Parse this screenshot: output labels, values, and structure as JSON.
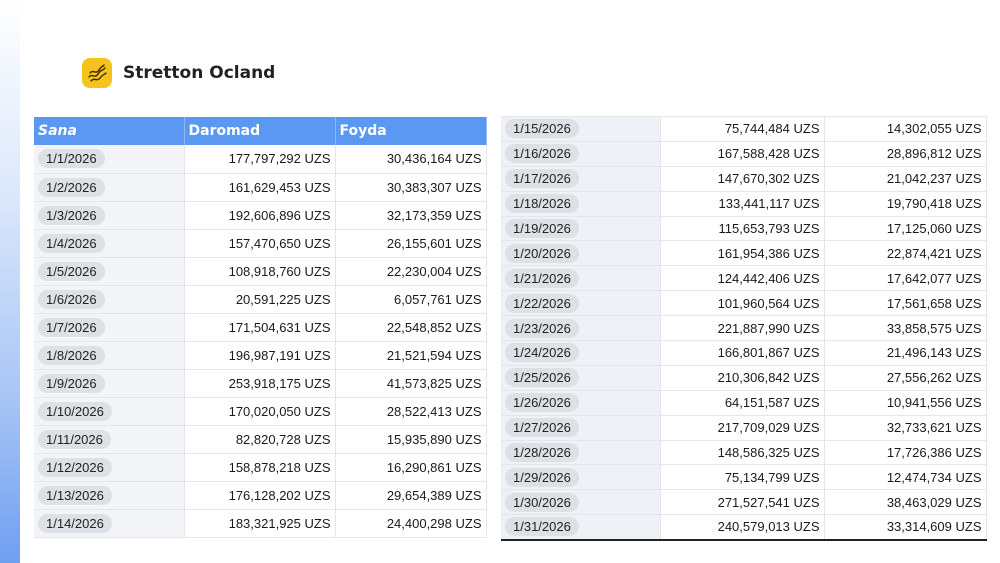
{
  "brand": {
    "name": "Stretton Ocland",
    "logo_icon": "wavy-lines-icon",
    "logo_color": "#f6c21c"
  },
  "accent_color": "#5b98f2",
  "table": {
    "headers": {
      "date": "Sana",
      "revenue": "Daromad",
      "profit": "Foyda"
    },
    "left_rows": [
      {
        "date": "1/1/2026",
        "revenue": "177,797,292 UZS",
        "profit": "30,436,164 UZS"
      },
      {
        "date": "1/2/2026",
        "revenue": "161,629,453 UZS",
        "profit": "30,383,307 UZS"
      },
      {
        "date": "1/3/2026",
        "revenue": "192,606,896 UZS",
        "profit": "32,173,359 UZS"
      },
      {
        "date": "1/4/2026",
        "revenue": "157,470,650 UZS",
        "profit": "26,155,601 UZS"
      },
      {
        "date": "1/5/2026",
        "revenue": "108,918,760 UZS",
        "profit": "22,230,004 UZS"
      },
      {
        "date": "1/6/2026",
        "revenue": "20,591,225 UZS",
        "profit": "6,057,761 UZS"
      },
      {
        "date": "1/7/2026",
        "revenue": "171,504,631 UZS",
        "profit": "22,548,852 UZS"
      },
      {
        "date": "1/8/2026",
        "revenue": "196,987,191 UZS",
        "profit": "21,521,594 UZS"
      },
      {
        "date": "1/9/2026",
        "revenue": "253,918,175 UZS",
        "profit": "41,573,825 UZS"
      },
      {
        "date": "1/10/2026",
        "revenue": "170,020,050 UZS",
        "profit": "28,522,413 UZS"
      },
      {
        "date": "1/11/2026",
        "revenue": "82,820,728 UZS",
        "profit": "15,935,890 UZS"
      },
      {
        "date": "1/12/2026",
        "revenue": "158,878,218 UZS",
        "profit": "16,290,861 UZS"
      },
      {
        "date": "1/13/2026",
        "revenue": "176,128,202 UZS",
        "profit": "29,654,389 UZS"
      },
      {
        "date": "1/14/2026",
        "revenue": "183,321,925 UZS",
        "profit": "24,400,298 UZS"
      }
    ],
    "right_rows": [
      {
        "date": "1/15/2026",
        "revenue": "75,744,484 UZS",
        "profit": "14,302,055 UZS"
      },
      {
        "date": "1/16/2026",
        "revenue": "167,588,428 UZS",
        "profit": "28,896,812 UZS"
      },
      {
        "date": "1/17/2026",
        "revenue": "147,670,302 UZS",
        "profit": "21,042,237 UZS"
      },
      {
        "date": "1/18/2026",
        "revenue": "133,441,117 UZS",
        "profit": "19,790,418 UZS"
      },
      {
        "date": "1/19/2026",
        "revenue": "115,653,793 UZS",
        "profit": "17,125,060 UZS"
      },
      {
        "date": "1/20/2026",
        "revenue": "161,954,386 UZS",
        "profit": "22,874,421 UZS"
      },
      {
        "date": "1/21/2026",
        "revenue": "124,442,406 UZS",
        "profit": "17,642,077 UZS"
      },
      {
        "date": "1/22/2026",
        "revenue": "101,960,564 UZS",
        "profit": "17,561,658 UZS"
      },
      {
        "date": "1/23/2026",
        "revenue": "221,887,990 UZS",
        "profit": "33,858,575 UZS"
      },
      {
        "date": "1/24/2026",
        "revenue": "166,801,867 UZS",
        "profit": "21,496,143 UZS"
      },
      {
        "date": "1/25/2026",
        "revenue": "210,306,842 UZS",
        "profit": "27,556,262 UZS"
      },
      {
        "date": "1/26/2026",
        "revenue": "64,151,587 UZS",
        "profit": "10,941,556 UZS"
      },
      {
        "date": "1/27/2026",
        "revenue": "217,709,029 UZS",
        "profit": "32,733,621 UZS"
      },
      {
        "date": "1/28/2026",
        "revenue": "148,586,325 UZS",
        "profit": "17,726,386 UZS"
      },
      {
        "date": "1/29/2026",
        "revenue": "75,134,799 UZS",
        "profit": "12,474,734 UZS"
      },
      {
        "date": "1/30/2026",
        "revenue": "271,527,541 UZS",
        "profit": "38,463,029 UZS"
      },
      {
        "date": "1/31/2026",
        "revenue": "240,579,013 UZS",
        "profit": "33,314,609 UZS"
      }
    ]
  }
}
